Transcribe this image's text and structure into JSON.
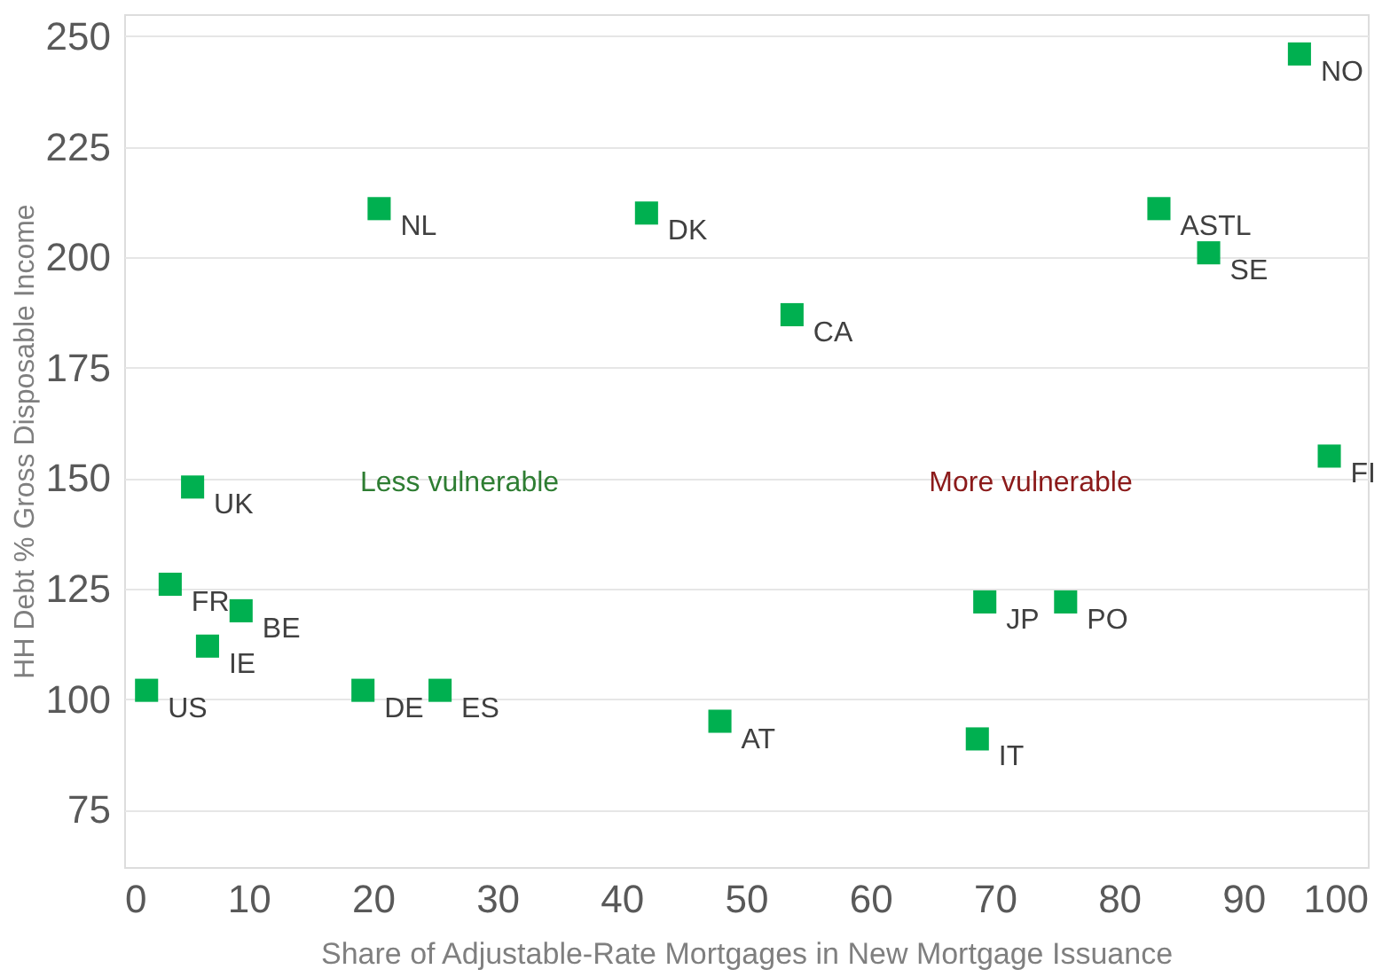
{
  "chart_data": {
    "type": "scatter",
    "xlabel": "Share of Adjustable-Rate Mortgages in New Mortgage Issuance",
    "ylabel": "HH Debt % Gross Disposable Income",
    "xlim": [
      0,
      100
    ],
    "xticks": [
      0,
      10,
      20,
      30,
      40,
      50,
      60,
      70,
      80,
      90,
      100
    ],
    "ylim": [
      62,
      255
    ],
    "yticks": [
      75,
      100,
      125,
      150,
      175,
      200,
      225,
      250
    ],
    "grid": "y",
    "marker": "square",
    "series": [
      {
        "color": "#00b050",
        "x": [
          94.5,
          83.2,
          87.2,
          53.7,
          20.5,
          42,
          96.9,
          5.5,
          3.7,
          6.7,
          9.4,
          1.8,
          19.2,
          25.4,
          47.9,
          68.6,
          69.2,
          75.7
        ],
        "values": [
          246,
          211,
          201,
          187,
          211,
          210,
          155,
          148,
          126,
          112,
          120,
          102,
          102,
          102,
          95,
          91,
          122,
          122
        ]
      }
    ],
    "annotations": [
      "Less vulnerable",
      "More vulnerable",
      {
        "text": "NO",
        "x": 94.5,
        "y": 246
      },
      {
        "text": "ASTL",
        "x": 83.2,
        "y": 211
      },
      {
        "text": "SE",
        "x": 87.2,
        "y": 201
      },
      {
        "text": "CA",
        "x": 53.7,
        "y": 187
      },
      {
        "text": "NL",
        "x": 20.5,
        "y": 211
      },
      {
        "text": "DK",
        "x": 42,
        "y": 210
      },
      {
        "text": "FI",
        "x": 96.9,
        "y": 155
      },
      {
        "text": "UK",
        "x": 5.5,
        "y": 148
      },
      {
        "text": "FR",
        "x": 3.7,
        "y": 126
      },
      {
        "text": "IE",
        "x": 6.7,
        "y": 112
      },
      {
        "text": "BE",
        "x": 9.4,
        "y": 120
      },
      {
        "text": "US",
        "x": 1.8,
        "y": 102
      },
      {
        "text": "DE",
        "x": 19.2,
        "y": 102
      },
      {
        "text": "ES",
        "x": 25.4,
        "y": 102
      },
      {
        "text": "AT",
        "x": 47.9,
        "y": 95
      },
      {
        "text": "IT",
        "x": 68.6,
        "y": 91
      },
      {
        "text": "JP",
        "x": 69.2,
        "y": 122
      },
      {
        "text": "PO",
        "x": 75.7,
        "y": 122
      }
    ]
  }
}
